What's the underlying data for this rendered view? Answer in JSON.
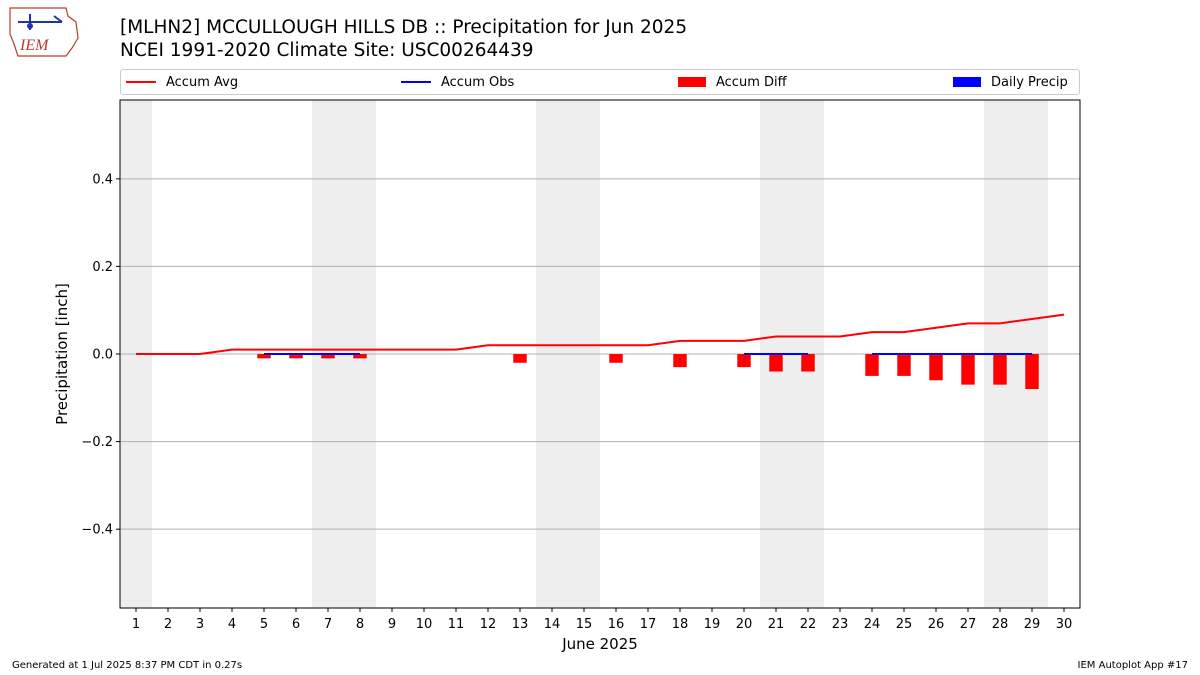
{
  "header": {
    "title_line1": "[MLHN2] MCCULLOUGH HILLS DB :: Precipitation for Jun 2025",
    "title_line2": "NCEI 1991-2020 Climate Site: USC00264439",
    "logo_text": "IEM"
  },
  "legend": [
    {
      "label": "Accum Avg",
      "kind": "line",
      "color": "#ff0000"
    },
    {
      "label": "Accum Obs",
      "kind": "line",
      "color": "#0000ff"
    },
    {
      "label": "Accum Diff",
      "kind": "box",
      "color": "#ff0000"
    },
    {
      "label": "Daily Precip",
      "kind": "box",
      "color": "#0000ff"
    }
  ],
  "footer": {
    "left": "Generated at 1 Jul 2025 8:37 PM CDT in 0.27s",
    "right": "IEM Autoplot App #17"
  },
  "chart_data": {
    "type": "line",
    "xlabel": "June 2025",
    "ylabel": "Precipitation [inch]",
    "x": [
      1,
      2,
      3,
      4,
      5,
      6,
      7,
      8,
      9,
      10,
      11,
      12,
      13,
      14,
      15,
      16,
      17,
      18,
      19,
      20,
      21,
      22,
      23,
      24,
      25,
      26,
      27,
      28,
      29,
      30
    ],
    "xlim": [
      0.5,
      30.5
    ],
    "ylim": [
      -0.58,
      0.58
    ],
    "yticks": [
      -0.4,
      -0.2,
      0.0,
      0.2,
      0.4
    ],
    "ytick_labels": [
      "−0.4",
      "−0.2",
      "0.0",
      "0.2",
      "0.4"
    ],
    "grid": true,
    "weekend_shading": [
      [
        0.5,
        1.5
      ],
      [
        6.5,
        8.5
      ],
      [
        13.5,
        15.5
      ],
      [
        20.5,
        22.5
      ],
      [
        27.5,
        29.5
      ]
    ],
    "series": [
      {
        "name": "Accum Avg",
        "color": "#ff0000",
        "x": [
          1,
          2,
          3,
          4,
          5,
          6,
          7,
          8,
          9,
          10,
          11,
          12,
          13,
          14,
          15,
          16,
          17,
          18,
          19,
          20,
          21,
          22,
          23,
          24,
          25,
          26,
          27,
          28,
          29,
          30
        ],
        "values": [
          0,
          0,
          0,
          0.01,
          0.01,
          0.01,
          0.01,
          0.01,
          0.01,
          0.01,
          0.01,
          0.02,
          0.02,
          0.02,
          0.02,
          0.02,
          0.02,
          0.03,
          0.03,
          0.03,
          0.04,
          0.04,
          0.04,
          0.05,
          0.05,
          0.06,
          0.07,
          0.07,
          0.08,
          0.09
        ]
      },
      {
        "name": "Accum Obs",
        "color": "#0000ff",
        "x": [
          5,
          6,
          7,
          8,
          9,
          10,
          11,
          12,
          13,
          14,
          15,
          16,
          17,
          18,
          19,
          20,
          21,
          22,
          23,
          24,
          25,
          26,
          27,
          28,
          29
        ],
        "values": [
          0,
          0,
          0,
          0,
          null,
          null,
          null,
          null,
          null,
          null,
          null,
          null,
          null,
          null,
          null,
          0,
          0,
          0,
          null,
          0,
          0,
          0,
          0,
          0,
          0
        ]
      },
      {
        "name": "Accum Diff",
        "color": "#ff0000",
        "x": [
          5,
          6,
          7,
          8,
          13,
          16,
          18,
          20,
          21,
          22,
          24,
          25,
          26,
          27,
          28,
          29
        ],
        "values": [
          -0.01,
          -0.01,
          -0.01,
          -0.01,
          -0.02,
          -0.02,
          -0.03,
          -0.03,
          -0.04,
          -0.04,
          -0.05,
          -0.05,
          -0.06,
          -0.07,
          -0.07,
          -0.08
        ]
      },
      {
        "name": "Daily Precip",
        "color": "#0000ff",
        "x": [],
        "values": []
      }
    ]
  }
}
